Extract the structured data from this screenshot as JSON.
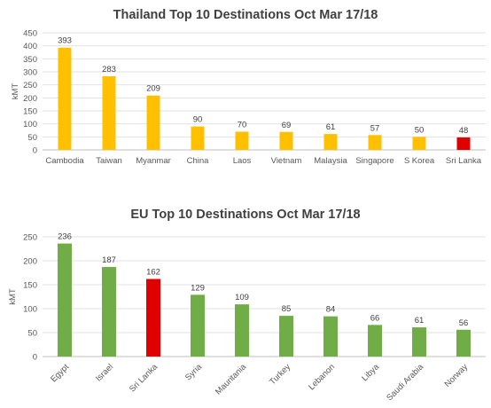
{
  "chart_data": [
    {
      "type": "bar",
      "title": "Thailand Top 10 Destinations Oct Mar 17/18",
      "ylabel": "kMT",
      "ylim": [
        0,
        450
      ],
      "yticks": [
        0,
        50,
        100,
        150,
        200,
        250,
        300,
        350,
        400,
        450
      ],
      "grid": true,
      "categories": [
        "Cambodia",
        "Taiwan",
        "Myanmar",
        "China",
        "Laos",
        "Vietnam",
        "Malaysia",
        "Singapore",
        "S Korea",
        "Sri Lanka"
      ],
      "values": [
        393,
        283,
        209,
        90,
        70,
        69,
        61,
        57,
        50,
        48
      ],
      "value_labels": [
        "393",
        "283",
        "209",
        "90",
        "70",
        "69",
        "61",
        "57",
        "50",
        "48"
      ],
      "bar_color": "#FFC000",
      "highlight_color": "#E00000",
      "highlight_index": 9
    },
    {
      "type": "bar",
      "title": "EU Top 10 Destinations Oct Mar 17/18",
      "ylabel": "kMT",
      "ylim": [
        0,
        250
      ],
      "yticks": [
        0,
        50,
        100,
        150,
        200,
        250
      ],
      "grid": true,
      "categories": [
        "Egypt",
        "Israel",
        "Sri Lanka",
        "Syria",
        "Mauritania",
        "Turkey",
        "Lebanon",
        "Libya",
        "Saudi Arabia",
        "Norway"
      ],
      "values": [
        236,
        187,
        162,
        129,
        109,
        85,
        84,
        66,
        61,
        56
      ],
      "value_labels": [
        "236",
        "187",
        "162",
        "129",
        "109",
        "85",
        "84",
        "66",
        "61",
        "56"
      ],
      "bar_color": "#70AD47",
      "highlight_color": "#E00000",
      "highlight_index": 2
    }
  ]
}
